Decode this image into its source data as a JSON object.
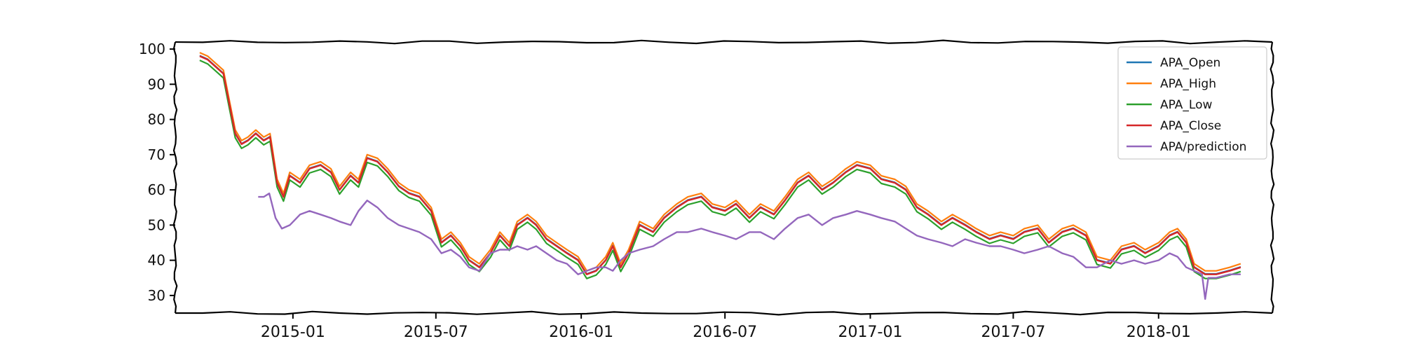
{
  "chart_data": {
    "type": "line",
    "title": "",
    "xlabel": "",
    "ylabel": "",
    "x_range": [
      "2014-08-05",
      "2018-05-25"
    ],
    "ylim": [
      25,
      102
    ],
    "grid": false,
    "legend_position": "top-right",
    "x_ticks": [
      "2015-01",
      "2015-07",
      "2016-01",
      "2016-07",
      "2017-01",
      "2017-07",
      "2018-01"
    ],
    "y_ticks": [
      30,
      40,
      50,
      60,
      70,
      80,
      90,
      100
    ],
    "colors": {
      "APA_Open": "#1f77b4",
      "APA_High": "#ff7f0e",
      "APA_Low": "#2ca02c",
      "APA_Close": "#d62728",
      "APA/prediction": "#9467bd"
    },
    "close_series": {
      "dates": [
        "2014-09-05",
        "2014-09-15",
        "2014-09-25",
        "2014-10-05",
        "2014-10-12",
        "2014-10-20",
        "2014-10-28",
        "2014-11-05",
        "2014-11-15",
        "2014-11-25",
        "2014-12-03",
        "2014-12-12",
        "2014-12-20",
        "2014-12-28",
        "2015-01-10",
        "2015-01-22",
        "2015-02-05",
        "2015-02-18",
        "2015-03-01",
        "2015-03-15",
        "2015-03-25",
        "2015-04-05",
        "2015-04-18",
        "2015-05-01",
        "2015-05-15",
        "2015-05-28",
        "2015-06-10",
        "2015-06-25",
        "2015-07-08",
        "2015-07-20",
        "2015-08-01",
        "2015-08-12",
        "2015-08-25",
        "2015-09-08",
        "2015-09-20",
        "2015-10-02",
        "2015-10-12",
        "2015-10-25",
        "2015-11-05",
        "2015-11-18",
        "2015-12-01",
        "2015-12-14",
        "2015-12-28",
        "2016-01-08",
        "2016-01-20",
        "2016-02-01",
        "2016-02-10",
        "2016-02-20",
        "2016-03-01",
        "2016-03-15",
        "2016-04-01",
        "2016-04-15",
        "2016-05-01",
        "2016-05-15",
        "2016-06-01",
        "2016-06-15",
        "2016-07-01",
        "2016-07-15",
        "2016-08-01",
        "2016-08-15",
        "2016-09-01",
        "2016-09-15",
        "2016-10-01",
        "2016-10-15",
        "2016-11-01",
        "2016-11-15",
        "2016-12-01",
        "2016-12-15",
        "2017-01-01",
        "2017-01-15",
        "2017-02-01",
        "2017-02-15",
        "2017-03-01",
        "2017-03-15",
        "2017-04-01",
        "2017-04-15",
        "2017-05-01",
        "2017-05-15",
        "2017-06-01",
        "2017-06-15",
        "2017-07-01",
        "2017-07-15",
        "2017-08-01",
        "2017-08-15",
        "2017-09-01",
        "2017-09-15",
        "2017-10-01",
        "2017-10-15",
        "2017-11-01",
        "2017-11-15",
        "2017-12-01",
        "2017-12-15",
        "2018-01-01",
        "2018-01-15",
        "2018-01-25",
        "2018-02-05",
        "2018-02-15",
        "2018-03-01",
        "2018-03-15",
        "2018-04-01",
        "2018-04-15"
      ],
      "values": [
        98,
        97,
        95,
        93,
        85,
        76,
        73,
        74,
        76,
        74,
        75,
        62,
        58,
        64,
        62,
        66,
        67,
        65,
        60,
        64,
        62,
        69,
        68,
        65,
        61,
        59,
        58,
        54,
        45,
        47,
        44,
        40,
        38,
        42,
        47,
        44,
        50,
        52,
        50,
        46,
        44,
        42,
        40,
        36,
        37,
        40,
        44,
        38,
        42,
        50,
        48,
        52,
        55,
        57,
        58,
        55,
        54,
        56,
        52,
        55,
        53,
        57,
        62,
        64,
        60,
        62,
        65,
        67,
        66,
        63,
        62,
        60,
        55,
        53,
        50,
        52,
        50,
        48,
        46,
        47,
        46,
        48,
        49,
        45,
        48,
        49,
        47,
        40,
        39,
        43,
        44,
        42,
        44,
        47,
        48,
        45,
        38,
        36,
        36,
        37,
        38
      ]
    },
    "prediction_series": {
      "dates": [
        "2014-11-18",
        "2014-11-25",
        "2014-12-02",
        "2014-12-10",
        "2014-12-18",
        "2014-12-28",
        "2015-01-10",
        "2015-01-22",
        "2015-02-05",
        "2015-02-18",
        "2015-03-01",
        "2015-03-15",
        "2015-03-25",
        "2015-04-05",
        "2015-04-18",
        "2015-05-01",
        "2015-05-15",
        "2015-05-28",
        "2015-06-10",
        "2015-06-25",
        "2015-07-08",
        "2015-07-20",
        "2015-08-01",
        "2015-08-12",
        "2015-08-25",
        "2015-09-08",
        "2015-09-20",
        "2015-10-02",
        "2015-10-12",
        "2015-10-25",
        "2015-11-05",
        "2015-11-18",
        "2015-12-01",
        "2015-12-14",
        "2015-12-28",
        "2016-01-08",
        "2016-01-20",
        "2016-02-01",
        "2016-02-10",
        "2016-02-20",
        "2016-03-01",
        "2016-03-15",
        "2016-04-01",
        "2016-04-15",
        "2016-05-01",
        "2016-05-15",
        "2016-06-01",
        "2016-06-15",
        "2016-07-01",
        "2016-07-15",
        "2016-08-01",
        "2016-08-15",
        "2016-09-01",
        "2016-09-15",
        "2016-10-01",
        "2016-10-15",
        "2016-11-01",
        "2016-11-15",
        "2016-12-01",
        "2016-12-15",
        "2017-01-01",
        "2017-01-15",
        "2017-02-01",
        "2017-02-15",
        "2017-03-01",
        "2017-03-15",
        "2017-04-01",
        "2017-04-15",
        "2017-05-01",
        "2017-05-15",
        "2017-06-01",
        "2017-06-15",
        "2017-07-01",
        "2017-07-15",
        "2017-08-01",
        "2017-08-15",
        "2017-09-01",
        "2017-09-15",
        "2017-10-01",
        "2017-10-15",
        "2017-11-01",
        "2017-11-15",
        "2017-12-01",
        "2017-12-15",
        "2018-01-01",
        "2018-01-15",
        "2018-01-25",
        "2018-02-05",
        "2018-02-15",
        "2018-02-25",
        "2018-03-01",
        "2018-03-05",
        "2018-03-15",
        "2018-04-01",
        "2018-04-15"
      ],
      "values": [
        58,
        58,
        59,
        52,
        49,
        50,
        53,
        54,
        53,
        52,
        51,
        50,
        54,
        57,
        55,
        52,
        50,
        49,
        48,
        46,
        42,
        43,
        41,
        38,
        37,
        42,
        43,
        43,
        44,
        43,
        44,
        42,
        40,
        39,
        36,
        37,
        38,
        38,
        37,
        40,
        42,
        43,
        44,
        46,
        48,
        48,
        49,
        48,
        47,
        46,
        48,
        48,
        46,
        49,
        52,
        53,
        50,
        52,
        53,
        54,
        53,
        52,
        51,
        49,
        47,
        46,
        45,
        44,
        46,
        45,
        44,
        44,
        43,
        42,
        43,
        44,
        42,
        41,
        38,
        38,
        40,
        39,
        40,
        39,
        40,
        42,
        41,
        38,
        37,
        36,
        29,
        35,
        35,
        36,
        36
      ]
    },
    "series": [
      {
        "name": "APA_Open"
      },
      {
        "name": "APA_High"
      },
      {
        "name": "APA_Low"
      },
      {
        "name": "APA_Close"
      },
      {
        "name": "APA/prediction"
      }
    ]
  }
}
